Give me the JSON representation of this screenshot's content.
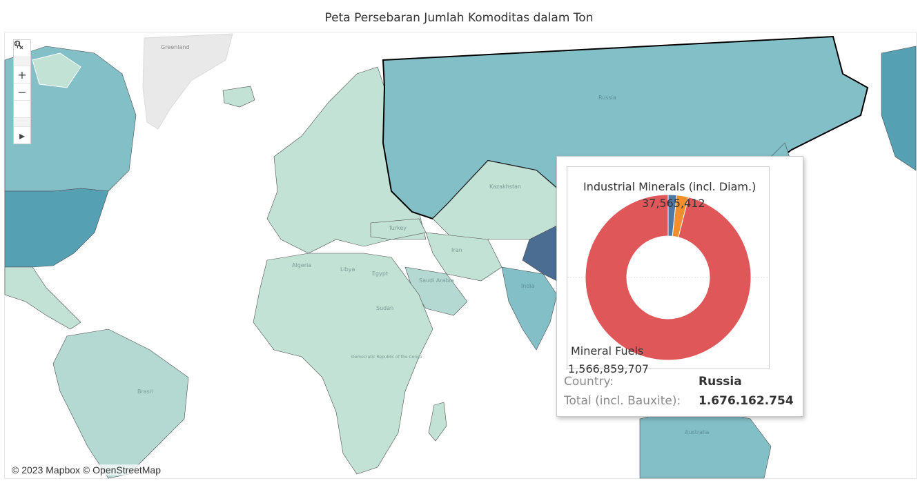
{
  "title": "Peta Persebaran Jumlah Komoditas dalam Ton",
  "attribution": "© 2023 Mapbox © OpenStreetMap",
  "toolbar": {
    "icons": [
      "search-icon",
      "zoom-in-icon",
      "zoom-out-icon",
      "reset-pin-icon",
      "play-icon"
    ],
    "zoom_in": "+",
    "zoom_out": "−",
    "play": "▸"
  },
  "map_labels": {
    "greenland": "Greenland",
    "russia": "Russia",
    "kazakhstan": "Kazakhstan",
    "algeria": "Algeria",
    "libya": "Libya",
    "egypt": "Egypt",
    "sudan": "Sudan",
    "saudi": "Saudi Arabia",
    "iran": "Iran",
    "turkey": "Turkey",
    "india": "India",
    "brasil": "Brasil",
    "drc": "Democratic Republic of the Congo",
    "australia": "Australia"
  },
  "colors": {
    "light": "#c3e2d6",
    "mid": "#83bfc7",
    "dark": "#56a0b4",
    "darkest": "#4b6d91",
    "mineral_fuels": "#e0575a",
    "industrial_minerals": "#f28e2b",
    "other": "#4e79a7"
  },
  "tooltip": {
    "country_label": "Country:",
    "country_value": "Russia",
    "total_label": "Total (incl. Bauxite):",
    "total_value": "1.676.162.754"
  },
  "chart_data": {
    "type": "pie",
    "slices": [
      {
        "name": "Mineral Fuels",
        "value": 1566859707,
        "label": "1,566,859,707",
        "color": "#e0575a"
      },
      {
        "name": "Industrial Minerals (incl. Diam.)",
        "value": 37565412,
        "label": "37,565,412",
        "color": "#f28e2b"
      },
      {
        "name": "",
        "value": 27000000,
        "label": "",
        "color": "#4e79a7"
      }
    ]
  }
}
